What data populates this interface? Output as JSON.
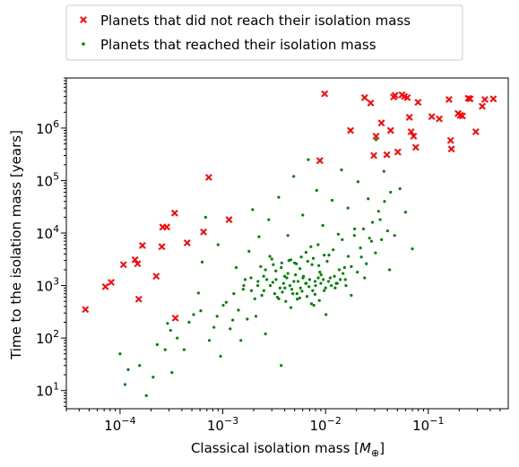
{
  "chart_data": {
    "type": "scatter",
    "xlabel": "Classical isolation mass [",
    "xlabel_math": "M",
    "xlabel_sub": "⊕",
    "xlabel_end": "]",
    "ylabel": "Time to the isolation mass [years]",
    "xscale": "log",
    "yscale": "log",
    "xlim": [
      3e-05,
      0.6
    ],
    "ylim": [
      4.5,
      9000000
    ],
    "x_ticks": [
      {
        "value": 0.0001,
        "base": "10",
        "exp": "−4"
      },
      {
        "value": 0.001,
        "base": "10",
        "exp": "−3"
      },
      {
        "value": 0.01,
        "base": "10",
        "exp": "−2"
      },
      {
        "value": 0.1,
        "base": "10",
        "exp": "−1"
      }
    ],
    "y_ticks": [
      {
        "value": 10,
        "base": "10",
        "exp": "1"
      },
      {
        "value": 100,
        "base": "10",
        "exp": "2"
      },
      {
        "value": 1000,
        "base": "10",
        "exp": "3"
      },
      {
        "value": 10000,
        "base": "10",
        "exp": "4"
      },
      {
        "value": 100000,
        "base": "10",
        "exp": "5"
      },
      {
        "value": 1000000,
        "base": "10",
        "exp": "6"
      }
    ],
    "grid": false,
    "legend_position": "top-center-outside",
    "series": [
      {
        "name": "Planets that did not reach their isolation mass",
        "marker": "x",
        "color": "#ff0000",
        "points": [
          [
            4.6e-05,
            350
          ],
          [
            7.2e-05,
            950
          ],
          [
            8.2e-05,
            1150
          ],
          [
            0.000108,
            2500
          ],
          [
            0.00014,
            3100
          ],
          [
            0.000148,
            2600
          ],
          [
            0.000152,
            550
          ],
          [
            0.000165,
            5800
          ],
          [
            0.000225,
            1500
          ],
          [
            0.000255,
            5500
          ],
          [
            0.00026,
            13000
          ],
          [
            0.000285,
            13000
          ],
          [
            0.00034,
            24000
          ],
          [
            0.000345,
            240
          ],
          [
            0.00045,
            6500
          ],
          [
            0.00065,
            10500
          ],
          [
            0.00073,
            115000
          ],
          [
            0.00115,
            18000
          ],
          [
            0.0088,
            240000
          ],
          [
            0.0098,
            4500000
          ],
          [
            0.0175,
            900000
          ],
          [
            0.024,
            3800000
          ],
          [
            0.0275,
            3000000
          ],
          [
            0.0295,
            300000
          ],
          [
            0.031,
            700000
          ],
          [
            0.035,
            1250000
          ],
          [
            0.0395,
            310000
          ],
          [
            0.043,
            900000
          ],
          [
            0.046,
            3900000
          ],
          [
            0.0475,
            4200000
          ],
          [
            0.0505,
            350000
          ],
          [
            0.0555,
            4300000
          ],
          [
            0.0585,
            4000000
          ],
          [
            0.0625,
            3800000
          ],
          [
            0.0655,
            1600000
          ],
          [
            0.068,
            850000
          ],
          [
            0.072,
            700000
          ],
          [
            0.0755,
            430000
          ],
          [
            0.0795,
            3100000
          ],
          [
            0.108,
            1650000
          ],
          [
            0.128,
            1500000
          ],
          [
            0.159,
            3500000
          ],
          [
            0.165,
            580000
          ],
          [
            0.168,
            400000
          ],
          [
            0.195,
            1900000
          ],
          [
            0.205,
            1750000
          ],
          [
            0.215,
            1700000
          ],
          [
            0.245,
            3700000
          ],
          [
            0.255,
            3600000
          ],
          [
            0.29,
            850000
          ],
          [
            0.335,
            2600000
          ],
          [
            0.355,
            3500000
          ],
          [
            0.43,
            3600000
          ]
        ]
      },
      {
        "name": "Planets that reached their isolation mass",
        "marker": "point",
        "color": "#008000",
        "points": [
          [
            0.0001,
            50
          ],
          [
            0.000112,
            13
          ],
          [
            0.000155,
            30
          ],
          [
            0.00018,
            8
          ],
          [
            0.00021,
            18
          ],
          [
            0.000275,
            60
          ],
          [
            0.00029,
            190
          ],
          [
            0.00032,
            22
          ],
          [
            0.00036,
            100
          ],
          [
            0.00042,
            60
          ],
          [
            0.00052,
            280
          ],
          [
            0.00058,
            720
          ],
          [
            0.00063,
            2800
          ],
          [
            0.00068,
            20000
          ],
          [
            0.00082,
            160
          ],
          [
            0.0009,
            6000
          ],
          [
            0.00095,
            45
          ],
          [
            0.00108,
            480
          ],
          [
            0.00125,
            220
          ],
          [
            0.00135,
            2200
          ],
          [
            0.0015,
            90
          ],
          [
            0.00165,
            1300
          ],
          [
            0.0018,
            4500
          ],
          [
            0.00195,
            28000
          ],
          [
            0.0021,
            260
          ],
          [
            0.00225,
            8500
          ],
          [
            0.0024,
            650
          ],
          [
            0.0026,
            120
          ],
          [
            0.0028,
            18000
          ],
          [
            0.003,
            3200
          ],
          [
            0.0032,
            700
          ],
          [
            0.0035,
            48000
          ],
          [
            0.0037,
            30
          ],
          [
            0.004,
            1500
          ],
          [
            0.0043,
            9000
          ],
          [
            0.0046,
            380
          ],
          [
            0.0049,
            120000
          ],
          [
            0.0052,
            2600
          ],
          [
            0.0056,
            580
          ],
          [
            0.006,
            22000
          ],
          [
            0.0064,
            1100
          ],
          [
            0.0068,
            250000
          ],
          [
            0.0072,
            5500
          ],
          [
            0.0077,
            420
          ],
          [
            0.0082,
            65000
          ],
          [
            0.0088,
            1800
          ],
          [
            0.0094,
            14000
          ],
          [
            0.0101,
            280
          ],
          [
            0.0108,
            3800
          ],
          [
            0.0116,
            42000
          ],
          [
            0.0124,
            900
          ],
          [
            0.0133,
            9500
          ],
          [
            0.0143,
            160000
          ],
          [
            0.0153,
            2200
          ],
          [
            0.0165,
            30000
          ],
          [
            0.0178,
            650
          ],
          [
            0.0192,
            12000
          ],
          [
            0.0207,
            95000
          ],
          [
            0.0223,
            3500
          ],
          [
            0.024,
            1400
          ],
          [
            0.026,
            45000
          ],
          [
            0.028,
            7000
          ],
          [
            0.031,
            600000
          ],
          [
            0.034,
            18000
          ],
          [
            0.037,
            150000
          ],
          [
            0.042,
            2000
          ],
          [
            0.047,
            9000
          ],
          [
            0.053,
            70000
          ],
          [
            0.06,
            25000
          ],
          [
            0.07,
            5000
          ],
          [
            0.00012,
            25
          ],
          [
            0.00023,
            75
          ],
          [
            0.00031,
            140
          ],
          [
            0.00047,
            200
          ],
          [
            0.00061,
            330
          ],
          [
            0.00074,
            90
          ],
          [
            0.00088,
            260
          ],
          [
            0.00101,
            420
          ],
          [
            0.00118,
            150
          ],
          [
            0.00128,
            700
          ],
          [
            0.00142,
            340
          ],
          [
            0.00158,
            850
          ],
          [
            0.00173,
            230
          ],
          [
            0.00188,
            1400
          ],
          [
            0.00205,
            560
          ],
          [
            0.00219,
            1000
          ],
          [
            0.00234,
            2300
          ],
          [
            0.00251,
            800
          ],
          [
            0.00268,
            1300
          ],
          [
            0.00287,
            3600
          ],
          [
            0.00307,
            1150
          ],
          [
            0.00328,
            1900
          ],
          [
            0.00351,
            560
          ],
          [
            0.00375,
            2700
          ],
          [
            0.00402,
            900
          ],
          [
            0.0043,
            1700
          ],
          [
            0.0046,
            3100
          ],
          [
            0.00492,
            1200
          ],
          [
            0.00527,
            700
          ],
          [
            0.00564,
            2100
          ],
          [
            0.00603,
            1400
          ],
          [
            0.00645,
            4300
          ],
          [
            0.0069,
            950
          ],
          [
            0.00739,
            2500
          ],
          [
            0.00791,
            1200
          ],
          [
            0.00846,
            6000
          ],
          [
            0.00905,
            1600
          ],
          [
            0.00969,
            800
          ],
          [
            0.01037,
            2900
          ],
          [
            0.0111,
            1400
          ],
          [
            0.01187,
            4800
          ],
          [
            0.0127,
            1100
          ],
          [
            0.0136,
            2000
          ],
          [
            0.01455,
            7500
          ],
          [
            0.01557,
            1300
          ],
          [
            0.01666,
            3600
          ],
          [
            0.01783,
            2300
          ],
          [
            0.01908,
            9000
          ],
          [
            0.02041,
            1800
          ],
          [
            0.02184,
            5200
          ],
          [
            0.02337,
            12000
          ],
          [
            0.025,
            2600
          ],
          [
            0.02675,
            8000
          ],
          [
            0.02863,
            16000
          ],
          [
            0.03063,
            4200
          ],
          [
            0.03278,
            26000
          ],
          [
            0.03508,
            7500
          ],
          [
            0.03753,
            40000
          ],
          [
            0.04016,
            11000
          ],
          [
            0.04297,
            60000
          ],
          [
            0.0016,
            1000
          ],
          [
            0.0019,
            800
          ],
          [
            0.0022,
            1200
          ],
          [
            0.0025,
            1500
          ],
          [
            0.0029,
            1000
          ],
          [
            0.0033,
            1300
          ],
          [
            0.0036,
            900
          ],
          [
            0.0039,
            1100
          ],
          [
            0.0042,
            1400
          ],
          [
            0.0045,
            1000
          ],
          [
            0.0048,
            700
          ],
          [
            0.0051,
            1600
          ],
          [
            0.0054,
            1200
          ],
          [
            0.0057,
            900
          ],
          [
            0.0061,
            1500
          ],
          [
            0.0065,
            1100
          ],
          [
            0.007,
            1300
          ],
          [
            0.0075,
            800
          ],
          [
            0.008,
            1000
          ],
          [
            0.0085,
            1400
          ],
          [
            0.009,
            1100
          ],
          [
            0.0095,
            1300
          ],
          [
            0.01,
            900
          ],
          [
            0.0107,
            1200
          ],
          [
            0.0114,
            1000
          ],
          [
            0.0122,
            1500
          ],
          [
            0.013,
            1100
          ],
          [
            0.0139,
            1300
          ],
          [
            0.0148,
            1700
          ],
          [
            0.0158,
            1000
          ],
          [
            0.0034,
            600
          ],
          [
            0.0038,
            750
          ],
          [
            0.0041,
            500
          ],
          [
            0.0047,
            850
          ],
          [
            0.0053,
            550
          ],
          [
            0.0059,
            780
          ],
          [
            0.0066,
            620
          ],
          [
            0.0073,
            450
          ],
          [
            0.0079,
            680
          ],
          [
            0.0087,
            520
          ],
          [
            0.0026,
            2000
          ],
          [
            0.0031,
            2500
          ],
          [
            0.0037,
            2200
          ],
          [
            0.0044,
            3000
          ],
          [
            0.005,
            2700
          ],
          [
            0.0058,
            3500
          ],
          [
            0.0067,
            2900
          ],
          [
            0.0076,
            3300
          ],
          [
            0.0086,
            2400
          ],
          [
            0.0097,
            3800
          ]
        ]
      }
    ]
  }
}
